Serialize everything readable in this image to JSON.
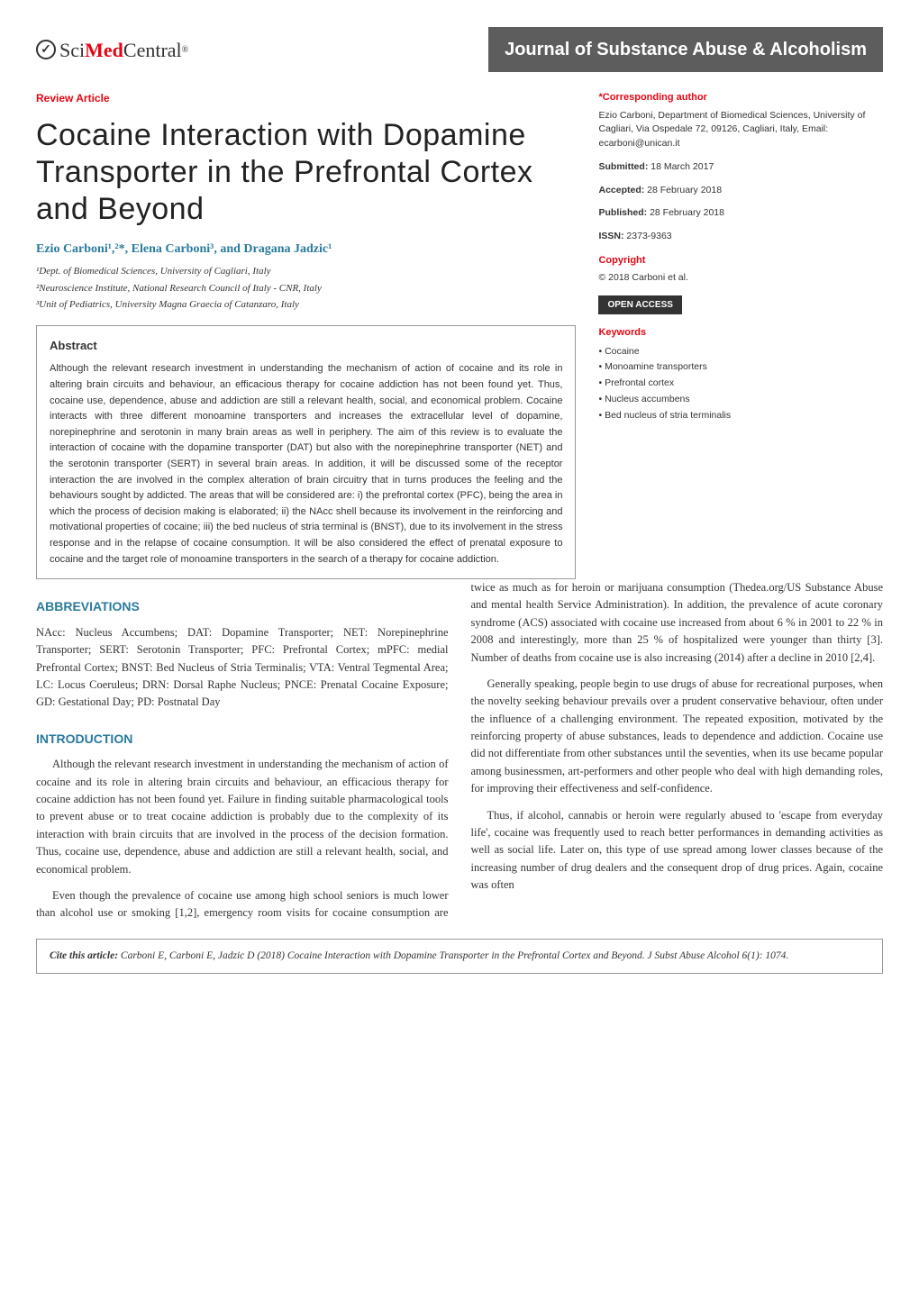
{
  "header": {
    "logo_sci": "Sci",
    "logo_med": "Med",
    "logo_central": "Central",
    "journal_name": "Journal of Substance Abuse & Alcoholism"
  },
  "article": {
    "type": "Review Article",
    "title": "Cocaine Interaction with Dopamine Transporter in the Prefrontal Cortex and Beyond",
    "authors": "Ezio Carboni¹,²*, Elena Carboni³, and Dragana Jadzic¹",
    "affiliations": [
      "¹Dept. of Biomedical Sciences, University of Cagliari, Italy",
      "²Neuroscience Institute, National Research Council of Italy - CNR, Italy",
      "³Unit of Pediatrics, University Magna Graecia of Catanzaro, Italy"
    ]
  },
  "abstract": {
    "heading": "Abstract",
    "text": "Although the relevant research investment in understanding the mechanism of action of cocaine and its role in altering brain circuits and behaviour, an efficacious therapy for cocaine addiction has not been found yet. Thus, cocaine use, dependence, abuse and addiction are still a relevant health, social, and economical problem. Cocaine interacts with three different monoamine transporters and increases the extracellular level of dopamine, norepinephrine and serotonin in many brain areas as well in periphery. The aim of this review is to evaluate the interaction of cocaine with the dopamine transporter (DAT) but also with the norepinephrine transporter (NET) and the serotonin transporter (SERT) in several brain areas. In addition, it will be discussed some of the receptor interaction the are involved in the complex alteration of brain circuitry that in turns produces the feeling and the behaviours sought by addicted. The areas that will be considered are: i) the prefrontal cortex (PFC), being the area in which the process of decision making is elaborated; ii) the NAcc shell because its involvement in the reinforcing and motivational properties of cocaine; iii) the bed nucleus of stria terminal is (BNST), due to its involvement in the stress response and in the relapse of cocaine consumption. It will be also considered the effect of prenatal exposure to cocaine and the target role of monoamine transporters in the search of a therapy for cocaine addiction."
  },
  "sidebar": {
    "corresponding_label": "*Corresponding author",
    "corresponding_text": "Ezio Carboni, Department of Biomedical Sciences, University of Cagliari, Via Ospedale 72, 09126, Cagliari, Italy, Email: ecarboni@unican.it",
    "submitted_label": "Submitted:",
    "submitted": "18 March 2017",
    "accepted_label": "Accepted:",
    "accepted": "28 February 2018",
    "published_label": "Published:",
    "published": "28 February 2018",
    "issn_label": "ISSN:",
    "issn": "2373-9363",
    "copyright_label": "Copyright",
    "copyright": "© 2018 Carboni et al.",
    "open_access": "OPEN ACCESS",
    "keywords_label": "Keywords",
    "keywords": [
      "• Cocaine",
      "• Monoamine transporters",
      "• Prefrontal cortex",
      "• Nucleus accumbens",
      "• Bed nucleus of stria terminalis"
    ]
  },
  "body": {
    "abbrev_heading": "ABBREVIATIONS",
    "abbrev_text": "NAcc: Nucleus Accumbens; DAT: Dopamine Transporter; NET: Norepinephrine Transporter; SERT: Serotonin Transporter; PFC: Prefrontal Cortex; mPFC: medial Prefrontal Cortex; BNST: Bed Nucleus of Stria Terminalis; VTA: Ventral Tegmental Area; LC: Locus Coeruleus; DRN: Dorsal Raphe Nucleus; PNCE: Prenatal Cocaine Exposure; GD: Gestational Day; PD: Postnatal Day",
    "intro_heading": "INTRODUCTION",
    "intro_p1": "Although the relevant research investment in understanding the mechanism of action of cocaine and its role in altering brain circuits and behaviour, an efficacious therapy for cocaine addiction has not been found yet. Failure in finding suitable pharmacological tools to prevent abuse or to treat cocaine addiction is probably due to the complexity of its interaction with brain circuits that are involved in the process of the decision formation. Thus, cocaine use, dependence, abuse and addiction are still a relevant health, social, and economical problem.",
    "intro_p2": "Even though the prevalence of cocaine use among high school seniors is much lower than alcohol use or smoking [1,2], emergency room visits for cocaine consumption are twice as much as for heroin or marijuana consumption (Thedea.org/US Substance Abuse and mental health Service Administration). In addition, the prevalence of acute coronary syndrome (ACS) associated with cocaine use increased from about 6 % in 2001 to 22 % in 2008 and interestingly, more than 25 % of hospitalized were younger than thirty [3]. Number of deaths from cocaine use is also increasing (2014) after a decline in 2010 [2,4].",
    "intro_p3": "Generally speaking, people begin to use drugs of abuse for recreational purposes, when the novelty seeking behaviour prevails over a prudent conservative behaviour, often under the influence of a challenging environment. The repeated exposition, motivated by the reinforcing property of abuse substances, leads to dependence and addiction. Cocaine use did not differentiate from other substances until the seventies, when its use became popular among businessmen, art-performers and other people who deal with high demanding roles, for improving their effectiveness and self-confidence.",
    "intro_p4": "Thus, if alcohol, cannabis or heroin were regularly abused to 'escape from everyday life', cocaine was frequently used to reach better performances in demanding activities as well as social life. Later on, this type of use spread among lower classes because of the increasing number of drug dealers and the consequent drop of drug prices. Again, cocaine was often"
  },
  "citation": {
    "label": "Cite this article:",
    "text": "Carboni E, Carboni E, Jadzic D (2018) Cocaine Interaction with Dopamine Transporter in the Prefrontal Cortex and Beyond. J Subst Abuse Alcohol 6(1): 1074."
  },
  "colors": {
    "accent_red": "#e30613",
    "accent_blue": "#2a7a9c",
    "journal_bar_bg": "#5d5d5d",
    "border": "#999999",
    "text": "#333333",
    "open_access_bg": "#333333"
  }
}
